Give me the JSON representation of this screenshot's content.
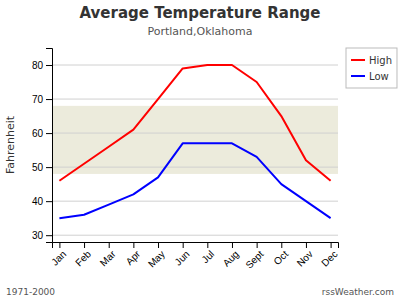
{
  "chart_data": {
    "type": "line",
    "title": "Average Temperature Range",
    "subtitle": "Portland,Oklahoma",
    "y_label": "Fahrenheit",
    "categories": [
      "Jan",
      "Feb",
      "Mar",
      "Apr",
      "May",
      "Jun",
      "Jul",
      "Aug",
      "Sept",
      "Oct",
      "Nov",
      "Dec"
    ],
    "series": [
      {
        "name": "High",
        "color": "#ff0000",
        "values": [
          46,
          51,
          56,
          61,
          70,
          79,
          80,
          80,
          75,
          65,
          52,
          46
        ]
      },
      {
        "name": "Low",
        "color": "#0000ff",
        "values": [
          35,
          36,
          39,
          42,
          47,
          57,
          57,
          57,
          53,
          45,
          40,
          35
        ]
      }
    ],
    "band": [
      48,
      68
    ],
    "ylim": [
      28,
      85
    ],
    "yticks": [
      30,
      40,
      50,
      60,
      70,
      80
    ],
    "grid": true,
    "legend": "top-right",
    "annotations": [
      "1971-2000",
      "rssWeather.com"
    ]
  }
}
